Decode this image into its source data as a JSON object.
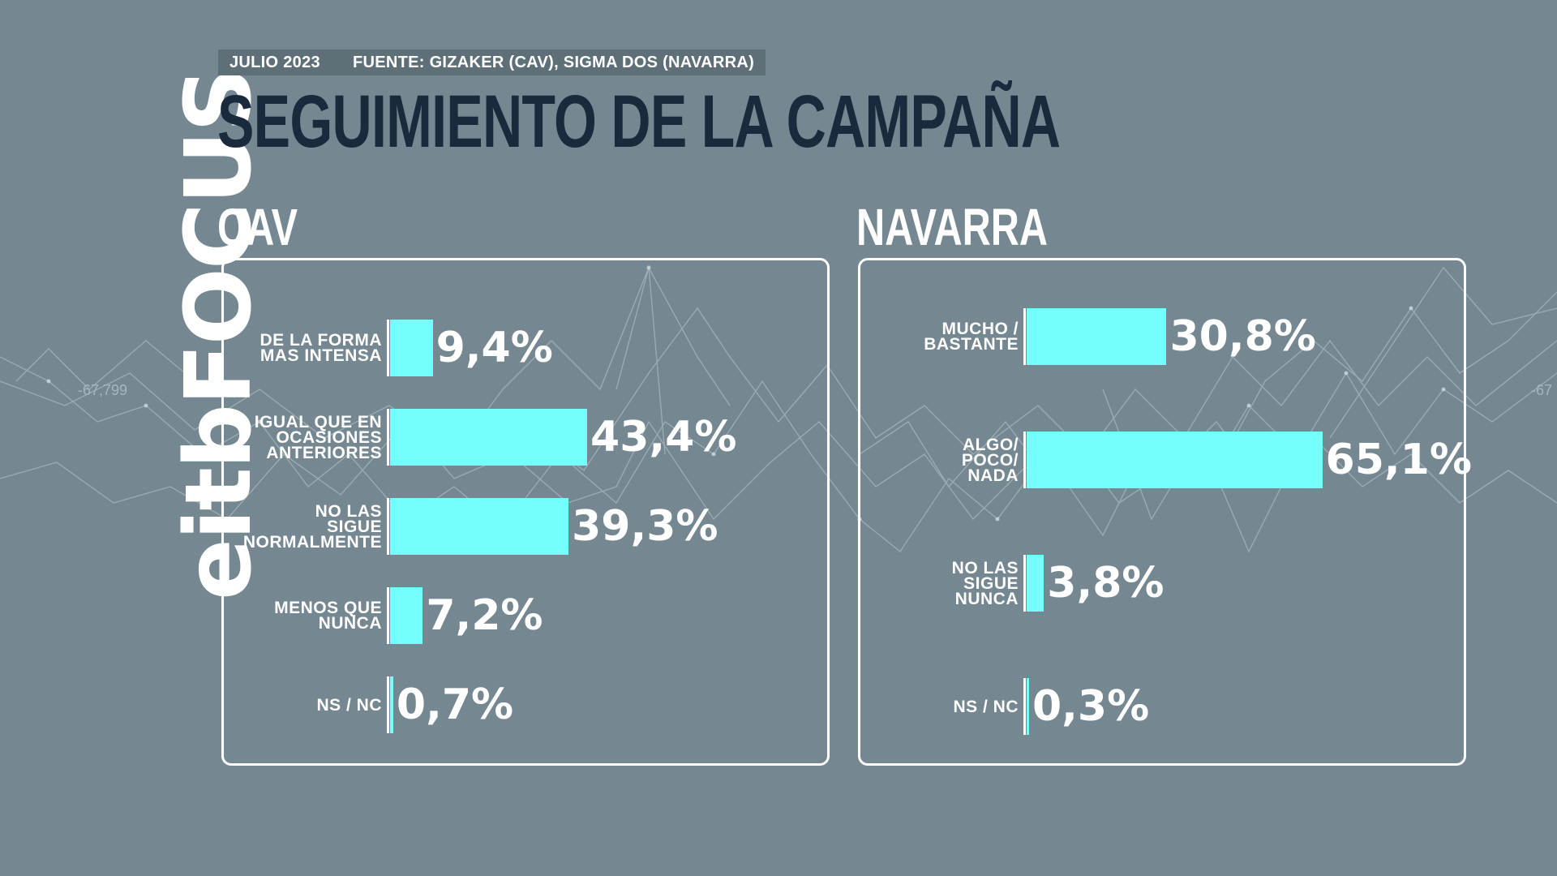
{
  "brand": "eitbFOCUS",
  "header": {
    "date": "JULIO 2023",
    "source": "FUENTE: GIZAKER (CAV), SIGMA DOS (NAVARRA)",
    "title": "SEGUIMIENTO DE LA CAMPAÑA"
  },
  "background": {
    "watermark_left": "-67,799",
    "watermark_right": "-67"
  },
  "colors": {
    "background": "#758790",
    "bar": "#74fffd",
    "title": "#1a2a3c",
    "text": "#ffffff"
  },
  "chart_data": [
    {
      "type": "bar",
      "title": "CAV",
      "orientation": "horizontal",
      "categories": [
        [
          "DE LA FORMA",
          "MAS INTENSA"
        ],
        [
          "IGUAL QUE EN",
          "OCASIONES",
          "ANTERIORES"
        ],
        [
          "NO LAS",
          "SIGUE",
          "NORMALMENTE"
        ],
        [
          "MENOS QUE",
          "NUNCA"
        ],
        [
          "NS / NC"
        ]
      ],
      "values": [
        9.4,
        43.4,
        39.3,
        7.2,
        0.7
      ],
      "value_labels": [
        "9,4%",
        "43,4%",
        "39,3%",
        "7,2%",
        "0,7%"
      ],
      "unit": "%",
      "xlim": [
        0,
        100
      ]
    },
    {
      "type": "bar",
      "title": "NAVARRA",
      "orientation": "horizontal",
      "categories": [
        [
          "MUCHO /",
          "BASTANTE"
        ],
        [
          "ALGO/",
          "POCO/",
          "NADA"
        ],
        [
          "NO LAS",
          "SIGUE",
          "NUNCA"
        ],
        [
          "NS / NC"
        ]
      ],
      "values": [
        30.8,
        65.1,
        3.8,
        0.3
      ],
      "value_labels": [
        "30,8%",
        "65,1%",
        "3,8%",
        "0,3%"
      ],
      "unit": "%",
      "xlim": [
        0,
        100
      ]
    }
  ]
}
